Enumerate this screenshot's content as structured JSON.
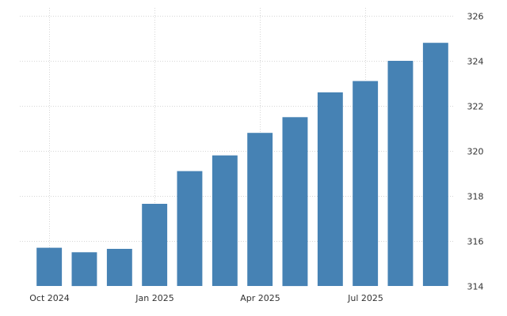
{
  "chart_data": {
    "type": "bar",
    "title": "",
    "xlabel": "",
    "ylabel": "",
    "categories": [
      "Oct 2024",
      "Nov 2024",
      "Dec 2024",
      "Jan 2025",
      "Feb 2025",
      "Mar 2025",
      "Apr 2025",
      "May 2025",
      "Jun 2025",
      "Jul 2025",
      "Aug 2025",
      "Sep 2025"
    ],
    "values": [
      315.7,
      315.5,
      315.65,
      317.65,
      319.1,
      319.8,
      320.8,
      321.5,
      322.6,
      323.1,
      324.0,
      324.8
    ],
    "ylim": [
      314,
      326
    ],
    "yticks": [
      314,
      316,
      318,
      320,
      322,
      324,
      326
    ],
    "yaxis_position": "right",
    "xticks": [
      {
        "label": "Oct 2024",
        "index": 0
      },
      {
        "label": "Jan 2025",
        "index": 3
      },
      {
        "label": "Apr 2025",
        "index": 6
      },
      {
        "label": "Jul 2025",
        "index": 9
      }
    ],
    "grid": true,
    "legend": "none",
    "bar_color": "#4682b4"
  }
}
